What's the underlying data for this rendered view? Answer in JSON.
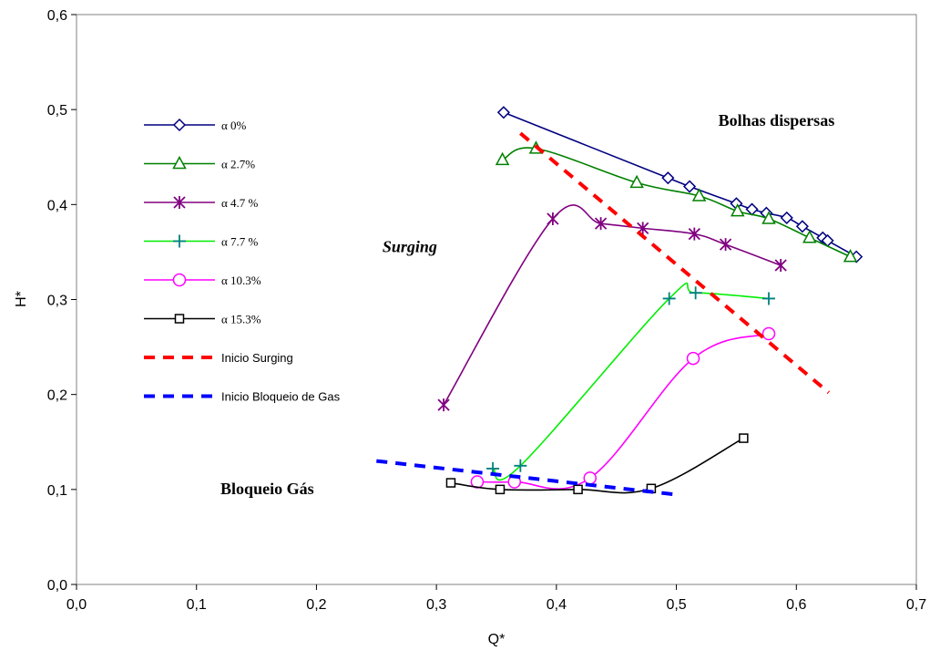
{
  "chart_data": {
    "type": "line",
    "xlabel": "Q*",
    "ylabel": "H*",
    "xlim": [
      0,
      0.7
    ],
    "ylim": [
      0,
      0.6
    ],
    "x_ticks": [
      "0,0",
      "0,1",
      "0,2",
      "0,3",
      "0,4",
      "0,5",
      "0,6",
      "0,7"
    ],
    "y_ticks": [
      "0,0",
      "0,1",
      "0,2",
      "0,3",
      "0,4",
      "0,5",
      "0,6"
    ],
    "grid": false,
    "legend_position": "left",
    "series": [
      {
        "name": "α 0%",
        "color": "#000080",
        "marker": "diamond",
        "line": "solid",
        "x": [
          0.356,
          0.493,
          0.511,
          0.55,
          0.563,
          0.575,
          0.592,
          0.605,
          0.622,
          0.626,
          0.65
        ],
        "y": [
          0.497,
          0.428,
          0.419,
          0.401,
          0.395,
          0.391,
          0.386,
          0.377,
          0.365,
          0.362,
          0.345
        ]
      },
      {
        "name": "α 2.7%",
        "color": "#008000",
        "marker": "triangle",
        "line": "solid",
        "x": [
          0.355,
          0.383,
          0.467,
          0.519,
          0.551,
          0.577,
          0.611,
          0.645
        ],
        "y": [
          0.447,
          0.459,
          0.423,
          0.409,
          0.393,
          0.385,
          0.365,
          0.345
        ]
      },
      {
        "name": "α 4.7 %",
        "color": "#800080",
        "marker": "asterisk",
        "line": "solid",
        "x": [
          0.306,
          0.397,
          0.437,
          0.472,
          0.515,
          0.541,
          0.587
        ],
        "y": [
          0.189,
          0.385,
          0.38,
          0.375,
          0.369,
          0.358,
          0.336
        ]
      },
      {
        "name": "α 7.7 %",
        "color": "#00ee00",
        "marker": "plus",
        "line": "solid",
        "x": [
          0.347,
          0.37,
          0.494,
          0.516,
          0.577
        ],
        "y": [
          0.122,
          0.125,
          0.301,
          0.307,
          0.301
        ]
      },
      {
        "name": "α 10.3%",
        "color": "#ff00ff",
        "marker": "circle",
        "line": "solid",
        "x": [
          0.334,
          0.365,
          0.428,
          0.514,
          0.577
        ],
        "y": [
          0.108,
          0.108,
          0.112,
          0.238,
          0.264
        ]
      },
      {
        "name": "α 15.3%",
        "color": "#000000",
        "marker": "square",
        "line": "solid",
        "x": [
          0.312,
          0.353,
          0.418,
          0.479,
          0.556
        ],
        "y": [
          0.107,
          0.1,
          0.1,
          0.101,
          0.154
        ]
      },
      {
        "name": "Inicio Surging",
        "color": "#ff0000",
        "marker": "none",
        "line": "dashed",
        "x": [
          0.37,
          0.627
        ],
        "y": [
          0.475,
          0.202
        ]
      },
      {
        "name": "Inicio Bloqueio de Gas",
        "color": "#0000ff",
        "marker": "none",
        "line": "dashed",
        "x": [
          0.25,
          0.497
        ],
        "y": [
          0.13,
          0.095
        ]
      }
    ],
    "annotations": [
      {
        "text": "Bolhas dispersas",
        "x": 0.535,
        "y": 0.483,
        "italic": false
      },
      {
        "text": "Surging",
        "x": 0.255,
        "y": 0.35,
        "italic": true
      },
      {
        "text": "Bloqueio Gás",
        "x": 0.12,
        "y": 0.095,
        "italic": false
      }
    ]
  }
}
